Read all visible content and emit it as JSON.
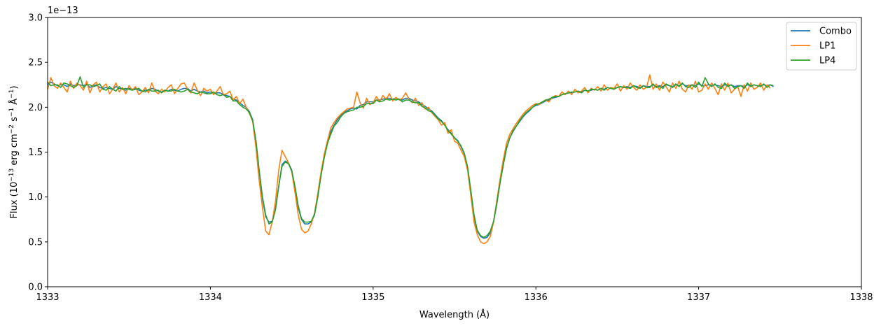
{
  "chart_data": {
    "type": "line",
    "xlabel": "Wavelength (Å)",
    "ylabel_parts": [
      "Flux (10",
      "−13",
      " erg cm",
      "−2",
      " s",
      "−1",
      " Å",
      "−1",
      ")"
    ],
    "offset_text": "1e−13",
    "xlim": [
      1333,
      1338
    ],
    "ylim": [
      0,
      3.0
    ],
    "xticks": [
      1333,
      1334,
      1335,
      1336,
      1337,
      1338
    ],
    "xtick_labels": [
      "1333",
      "1334",
      "1335",
      "1336",
      "1337",
      "1338"
    ],
    "yticks": [
      0,
      0.5,
      1.0,
      1.5,
      2.0,
      2.5,
      3.0
    ],
    "ytick_labels": [
      "0.0",
      "0.5",
      "1.0",
      "1.5",
      "2.0",
      "2.5",
      "3.0"
    ],
    "legend_position": "upper right",
    "grid": false,
    "x_step": 0.02,
    "series": [
      {
        "name": "Combo",
        "color": "#1f77b4",
        "values": [
          2.25,
          2.28,
          2.26,
          2.24,
          2.25,
          2.25,
          2.23,
          2.26,
          2.24,
          2.25,
          2.25,
          2.24,
          2.26,
          2.22,
          2.24,
          2.25,
          2.22,
          2.21,
          2.22,
          2.21,
          2.2,
          2.23,
          2.21,
          2.2,
          2.19,
          2.21,
          2.2,
          2.21,
          2.19,
          2.18,
          2.19,
          2.19,
          2.21,
          2.2,
          2.18,
          2.17,
          2.19,
          2.18,
          2.2,
          2.19,
          2.18,
          2.2,
          2.21,
          2.21,
          2.18,
          2.2,
          2.18,
          2.17,
          2.18,
          2.16,
          2.17,
          2.15,
          2.16,
          2.16,
          2.14,
          2.13,
          2.12,
          2.09,
          2.08,
          2.05,
          2.02,
          2.0,
          1.95,
          1.86,
          1.62,
          1.28,
          0.98,
          0.78,
          0.72,
          0.73,
          0.86,
          1.12,
          1.36,
          1.4,
          1.38,
          1.3,
          1.1,
          0.88,
          0.75,
          0.7,
          0.7,
          0.72,
          0.8,
          1.0,
          1.25,
          1.45,
          1.62,
          1.73,
          1.8,
          1.86,
          1.91,
          1.94,
          1.96,
          1.98,
          1.99,
          1.98,
          2.02,
          2.03,
          2.06,
          2.06,
          2.06,
          2.08,
          2.08,
          2.09,
          2.1,
          2.1,
          2.09,
          2.1,
          2.09,
          2.08,
          2.1,
          2.1,
          2.08,
          2.07,
          2.06,
          2.03,
          2.01,
          1.98,
          1.96,
          1.92,
          1.88,
          1.85,
          1.8,
          1.75,
          1.71,
          1.66,
          1.63,
          1.56,
          1.48,
          1.32,
          1.06,
          0.78,
          0.62,
          0.56,
          0.54,
          0.55,
          0.6,
          0.72,
          0.92,
          1.16,
          1.36,
          1.54,
          1.66,
          1.73,
          1.79,
          1.84,
          1.89,
          1.93,
          1.96,
          2.0,
          2.02,
          2.03,
          2.05,
          2.07,
          2.08,
          2.1,
          2.11,
          2.12,
          2.14,
          2.15,
          2.16,
          2.16,
          2.17,
          2.18,
          2.17,
          2.19,
          2.18,
          2.19,
          2.2,
          2.19,
          2.21,
          2.2,
          2.22,
          2.21,
          2.21,
          2.22,
          2.23,
          2.22,
          2.23,
          2.22,
          2.24,
          2.23,
          2.22,
          2.24,
          2.23,
          2.23,
          2.25,
          2.23,
          2.24,
          2.23,
          2.25,
          2.24,
          2.23,
          2.25,
          2.24,
          2.26,
          2.24,
          2.24,
          2.25,
          2.24,
          2.26,
          2.24,
          2.24,
          2.25,
          2.24,
          2.25,
          2.24,
          2.23,
          2.25,
          2.24,
          2.25,
          2.23,
          2.24,
          2.24,
          2.23,
          2.25,
          2.24,
          2.25,
          2.24,
          2.24,
          2.25,
          2.24,
          2.25,
          2.23
        ]
      },
      {
        "name": "LP1",
        "color": "#ff7f0e",
        "values": [
          2.2,
          2.33,
          2.24,
          2.21,
          2.27,
          2.22,
          2.17,
          2.29,
          2.21,
          2.27,
          2.24,
          2.19,
          2.29,
          2.16,
          2.25,
          2.28,
          2.17,
          2.23,
          2.26,
          2.15,
          2.2,
          2.27,
          2.17,
          2.22,
          2.15,
          2.24,
          2.19,
          2.23,
          2.14,
          2.17,
          2.22,
          2.16,
          2.27,
          2.18,
          2.15,
          2.2,
          2.17,
          2.22,
          2.25,
          2.15,
          2.21,
          2.26,
          2.27,
          2.2,
          2.16,
          2.27,
          2.19,
          2.13,
          2.21,
          2.18,
          2.2,
          2.14,
          2.18,
          2.23,
          2.14,
          2.15,
          2.18,
          2.08,
          2.12,
          2.04,
          2.09,
          2.0,
          1.93,
          1.84,
          1.55,
          1.18,
          0.88,
          0.62,
          0.58,
          0.72,
          0.95,
          1.3,
          1.52,
          1.45,
          1.38,
          1.28,
          1.05,
          0.8,
          0.64,
          0.6,
          0.62,
          0.7,
          0.82,
          1.04,
          1.28,
          1.48,
          1.63,
          1.77,
          1.83,
          1.88,
          1.92,
          1.95,
          1.98,
          1.99,
          2.0,
          2.17,
          2.05,
          1.99,
          2.1,
          2.03,
          2.05,
          2.12,
          2.06,
          2.13,
          2.09,
          2.15,
          2.07,
          2.11,
          2.08,
          2.1,
          2.16,
          2.09,
          2.05,
          2.1,
          2.02,
          2.05,
          1.98,
          2.0,
          1.94,
          1.9,
          1.86,
          1.8,
          1.83,
          1.71,
          1.75,
          1.62,
          1.6,
          1.52,
          1.45,
          1.3,
          1.02,
          0.72,
          0.58,
          0.5,
          0.48,
          0.5,
          0.56,
          0.72,
          0.96,
          1.2,
          1.42,
          1.6,
          1.7,
          1.76,
          1.82,
          1.87,
          1.92,
          1.96,
          1.99,
          2.02,
          2.04,
          2.03,
          2.06,
          2.08,
          2.06,
          2.11,
          2.13,
          2.12,
          2.17,
          2.14,
          2.18,
          2.14,
          2.2,
          2.16,
          2.18,
          2.22,
          2.16,
          2.21,
          2.19,
          2.23,
          2.18,
          2.25,
          2.19,
          2.22,
          2.21,
          2.26,
          2.18,
          2.24,
          2.2,
          2.27,
          2.22,
          2.19,
          2.25,
          2.2,
          2.22,
          2.36,
          2.2,
          2.26,
          2.19,
          2.28,
          2.23,
          2.17,
          2.27,
          2.21,
          2.29,
          2.2,
          2.17,
          2.25,
          2.2,
          2.29,
          2.17,
          2.19,
          2.26,
          2.2,
          2.27,
          2.21,
          2.14,
          2.26,
          2.19,
          2.27,
          2.16,
          2.2,
          2.23,
          2.12,
          2.25,
          2.18,
          2.27,
          2.2,
          2.22,
          2.27,
          2.19,
          2.25,
          2.21
        ]
      },
      {
        "name": "LP4",
        "color": "#2ca02c",
        "values": [
          2.28,
          2.24,
          2.25,
          2.25,
          2.22,
          2.27,
          2.26,
          2.24,
          2.22,
          2.24,
          2.34,
          2.22,
          2.25,
          2.25,
          2.23,
          2.24,
          2.26,
          2.2,
          2.19,
          2.23,
          2.2,
          2.18,
          2.23,
          2.2,
          2.21,
          2.2,
          2.19,
          2.2,
          2.21,
          2.18,
          2.17,
          2.2,
          2.18,
          2.18,
          2.19,
          2.16,
          2.19,
          2.18,
          2.18,
          2.2,
          2.18,
          2.17,
          2.18,
          2.2,
          2.17,
          2.16,
          2.15,
          2.17,
          2.16,
          2.15,
          2.15,
          2.17,
          2.14,
          2.13,
          2.14,
          2.11,
          2.12,
          2.07,
          2.07,
          2.03,
          2.0,
          1.98,
          1.94,
          1.85,
          1.63,
          1.3,
          1.0,
          0.8,
          0.7,
          0.72,
          0.86,
          1.12,
          1.34,
          1.39,
          1.37,
          1.29,
          1.12,
          0.9,
          0.76,
          0.72,
          0.72,
          0.73,
          0.81,
          1.0,
          1.24,
          1.44,
          1.6,
          1.7,
          1.79,
          1.83,
          1.89,
          1.93,
          1.95,
          1.96,
          1.97,
          2.0,
          2.0,
          2.01,
          2.04,
          2.04,
          2.04,
          2.08,
          2.06,
          2.07,
          2.09,
          2.08,
          2.09,
          2.08,
          2.09,
          2.06,
          2.08,
          2.08,
          2.06,
          2.05,
          2.05,
          2.01,
          1.99,
          1.96,
          1.95,
          1.91,
          1.87,
          1.84,
          1.8,
          1.74,
          1.7,
          1.66,
          1.62,
          1.57,
          1.49,
          1.34,
          1.08,
          0.8,
          0.63,
          0.57,
          0.55,
          0.57,
          0.62,
          0.73,
          0.93,
          1.16,
          1.36,
          1.55,
          1.66,
          1.74,
          1.79,
          1.85,
          1.9,
          1.94,
          1.97,
          2.0,
          2.03,
          2.04,
          2.06,
          2.08,
          2.09,
          2.11,
          2.12,
          2.12,
          2.14,
          2.15,
          2.16,
          2.17,
          2.17,
          2.18,
          2.16,
          2.19,
          2.18,
          2.2,
          2.2,
          2.19,
          2.21,
          2.19,
          2.22,
          2.21,
          2.2,
          2.22,
          2.23,
          2.22,
          2.22,
          2.21,
          2.24,
          2.22,
          2.21,
          2.24,
          2.22,
          2.22,
          2.26,
          2.22,
          2.23,
          2.21,
          2.26,
          2.24,
          2.22,
          2.26,
          2.23,
          2.27,
          2.23,
          2.22,
          2.25,
          2.22,
          2.28,
          2.23,
          2.33,
          2.26,
          2.23,
          2.26,
          2.22,
          2.21,
          2.27,
          2.23,
          2.25,
          2.21,
          2.23,
          2.24,
          2.21,
          2.27,
          2.23,
          2.25,
          2.24,
          2.23,
          2.26,
          2.22,
          2.25,
          2.24
        ]
      }
    ]
  }
}
